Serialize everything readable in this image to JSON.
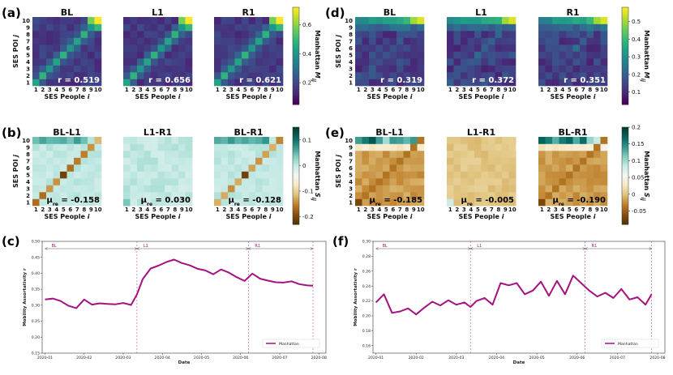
{
  "chart_data": [
    {
      "panel": "(a)",
      "type": "heatmap",
      "subplots": [
        {
          "title": "BL",
          "stat_text": "r = 0.519"
        },
        {
          "title": "L1",
          "stat_text": "r = 0.656"
        },
        {
          "title": "R1",
          "stat_text": "r = 0.621"
        }
      ],
      "xlabel": "SES People i",
      "ylabel": "SES POI j",
      "ticks": [
        "1",
        "2",
        "3",
        "4",
        "5",
        "6",
        "7",
        "8",
        "9",
        "10"
      ],
      "colorbar": {
        "label": "Manhattan M_ij",
        "ticks": [
          0.2,
          0.4,
          0.6
        ],
        "range": [
          0.05,
          0.72
        ],
        "colormap": "viridis"
      }
    },
    {
      "panel": "(b)",
      "type": "heatmap",
      "subplots": [
        {
          "title": "BL-L1",
          "stat_text": "μ_re = -0.158"
        },
        {
          "title": "L1-R1",
          "stat_text": "μ_re = 0.030"
        },
        {
          "title": "BL-R1",
          "stat_text": "μ_re = -0.128"
        }
      ],
      "xlabel": "SES People i",
      "ylabel": "SES POI j",
      "ticks": [
        "1",
        "2",
        "3",
        "4",
        "5",
        "6",
        "7",
        "8",
        "9",
        "10"
      ],
      "colorbar": {
        "label": "Manhattan S_ij",
        "ticks": [
          0.1,
          0.0,
          -0.1,
          -0.2
        ],
        "range": [
          -0.23,
          0.15
        ],
        "colormap": "BrBG"
      }
    },
    {
      "panel": "(d)",
      "type": "heatmap",
      "subplots": [
        {
          "title": "BL",
          "stat_text": "r = 0.319"
        },
        {
          "title": "L1",
          "stat_text": "r = 0.372"
        },
        {
          "title": "R1",
          "stat_text": "r = 0.351"
        }
      ],
      "xlabel": "SES People i",
      "ylabel": "SES POI j",
      "ticks": [
        "1",
        "2",
        "3",
        "4",
        "5",
        "6",
        "7",
        "8",
        "9",
        "10"
      ],
      "colorbar": {
        "label": "Manhattan M_ij",
        "ticks": [
          0.1,
          0.2,
          0.3,
          0.4,
          0.5
        ],
        "range": [
          0.03,
          0.58
        ],
        "colormap": "viridis"
      }
    },
    {
      "panel": "(e)",
      "type": "heatmap",
      "subplots": [
        {
          "title": "BL-L1",
          "stat_text": "μ_re = -0.185"
        },
        {
          "title": "L1-R1",
          "stat_text": "μ_re = -0.005"
        },
        {
          "title": "BL-R1",
          "stat_text": "μ_re = -0.190"
        }
      ],
      "xlabel": "SES People i",
      "ylabel": "SES POI j",
      "ticks": [
        "1",
        "2",
        "3",
        "4",
        "5",
        "6",
        "7",
        "8",
        "9",
        "10"
      ],
      "colorbar": {
        "label": "Manhattan S_ij",
        "ticks": [
          0.2,
          0.15,
          0.1,
          0.05,
          0.0,
          -0.05
        ],
        "range": [
          -0.09,
          0.2
        ],
        "colormap": "BrBG"
      }
    },
    {
      "panel": "(c)",
      "type": "line",
      "xlabel": "Date",
      "ylabel": "Mobility Assortativity r",
      "xticks": [
        "2020-01",
        "2020-02",
        "2020-03",
        "2020-04",
        "2020-05",
        "2020-06",
        "2020-07",
        "2020-08"
      ],
      "ylim": [
        0.15,
        0.5
      ],
      "yticks": [
        0.15,
        0.2,
        0.25,
        0.3,
        0.35,
        0.4,
        0.45,
        0.5
      ],
      "periods": [
        {
          "label": "BL",
          "start": 0.0,
          "end": 2.35
        },
        {
          "label": "L1",
          "start": 2.35,
          "end": 5.2
        },
        {
          "label": "R1",
          "start": 5.2,
          "end": 6.85
        }
      ],
      "legend": "Manhattan",
      "series": [
        {
          "name": "Manhattan",
          "x": [
            0,
            0.2,
            0.4,
            0.6,
            0.8,
            1,
            1.2,
            1.4,
            1.6,
            1.8,
            2,
            2.2,
            2.35,
            2.5,
            2.7,
            2.9,
            3.1,
            3.3,
            3.5,
            3.7,
            3.9,
            4.1,
            4.3,
            4.5,
            4.7,
            4.9,
            5.1,
            5.3,
            5.5,
            5.7,
            5.9,
            6.1,
            6.3,
            6.5,
            6.7,
            6.85
          ],
          "y": [
            0.318,
            0.321,
            0.313,
            0.298,
            0.291,
            0.318,
            0.302,
            0.306,
            0.304,
            0.303,
            0.307,
            0.301,
            0.334,
            0.382,
            0.415,
            0.424,
            0.435,
            0.443,
            0.432,
            0.425,
            0.414,
            0.409,
            0.397,
            0.412,
            0.402,
            0.388,
            0.376,
            0.399,
            0.383,
            0.377,
            0.372,
            0.371,
            0.375,
            0.366,
            0.362,
            0.361
          ]
        }
      ]
    },
    {
      "panel": "(f)",
      "type": "line",
      "xlabel": "Date",
      "ylabel": "Mobility Assortativity r",
      "xticks": [
        "2020-01",
        "2020-02",
        "2020-03",
        "2020-04",
        "2020-05",
        "2020-06",
        "2020-07",
        "2020-08"
      ],
      "ylim": [
        0.15,
        0.3
      ],
      "yticks": [
        0.16,
        0.18,
        0.2,
        0.22,
        0.24,
        0.26,
        0.28,
        0.3
      ],
      "periods": [
        {
          "label": "BL",
          "start": 0.0,
          "end": 2.35
        },
        {
          "label": "L1",
          "start": 2.35,
          "end": 5.2
        },
        {
          "label": "R1",
          "start": 5.2,
          "end": 6.85
        }
      ],
      "legend": "Manhattan",
      "series": [
        {
          "name": "Manhattan",
          "x": [
            0,
            0.2,
            0.4,
            0.6,
            0.8,
            1,
            1.2,
            1.4,
            1.6,
            1.8,
            2,
            2.2,
            2.35,
            2.5,
            2.7,
            2.9,
            3.1,
            3.3,
            3.5,
            3.7,
            3.9,
            4.1,
            4.3,
            4.5,
            4.7,
            4.9,
            5.1,
            5.3,
            5.5,
            5.7,
            5.9,
            6.1,
            6.3,
            6.5,
            6.7,
            6.85
          ],
          "y": [
            0.218,
            0.229,
            0.204,
            0.206,
            0.21,
            0.202,
            0.211,
            0.219,
            0.214,
            0.221,
            0.215,
            0.218,
            0.212,
            0.22,
            0.224,
            0.215,
            0.244,
            0.241,
            0.244,
            0.229,
            0.234,
            0.246,
            0.227,
            0.247,
            0.229,
            0.254,
            0.244,
            0.234,
            0.226,
            0.231,
            0.224,
            0.236,
            0.222,
            0.225,
            0.215,
            0.229
          ]
        }
      ]
    }
  ]
}
